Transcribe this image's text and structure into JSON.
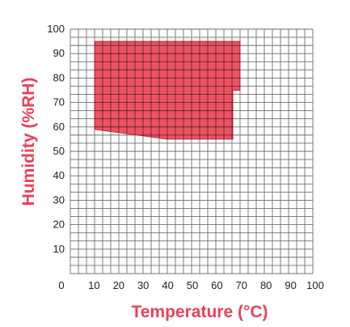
{
  "chart_data": {
    "type": "area",
    "xlabel": "Temperature (°C)",
    "ylabel": "Humidity (%RH)",
    "xlim": [
      0,
      100
    ],
    "ylim": [
      0,
      100
    ],
    "x_ticks": [
      "0",
      "10",
      "20",
      "30",
      "40",
      "50",
      "60",
      "70",
      "80",
      "90",
      "100"
    ],
    "y_ticks": [
      "10",
      "20",
      "30",
      "40",
      "50",
      "60",
      "70",
      "80",
      "90",
      "100"
    ],
    "grid": true,
    "minor_grid_step": 3.33,
    "region": {
      "points": [
        {
          "x": 10,
          "y": 95
        },
        {
          "x": 70,
          "y": 95
        },
        {
          "x": 70,
          "y": 75
        },
        {
          "x": 67,
          "y": 75
        },
        {
          "x": 67,
          "y": 55
        },
        {
          "x": 40,
          "y": 55
        },
        {
          "x": 10,
          "y": 59
        }
      ]
    },
    "colors": {
      "region_fill": "#ea4a5a",
      "region_stroke": "#c8223a",
      "axis_title": "#e8425a",
      "grid": "#6e6e6e"
    }
  }
}
